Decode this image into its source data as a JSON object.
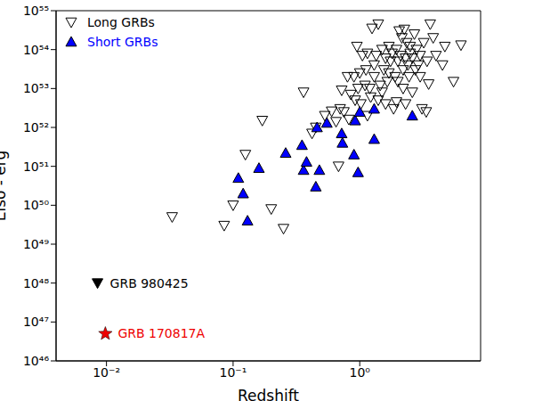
{
  "chart_data": {
    "type": "scatter",
    "log": true,
    "xlabel": "Redshift",
    "ylabel": "Eiso - erg",
    "xlim": [
      0.004,
      9
    ],
    "ylim": [
      1e+46,
      1e+55
    ],
    "xticks": [
      {
        "value": 0.01,
        "label": "10⁻²"
      },
      {
        "value": 0.1,
        "label": "10⁻¹"
      },
      {
        "value": 1,
        "label": "10⁰"
      }
    ],
    "yticks": [
      {
        "value": 1e+46,
        "label": "10⁴⁶"
      },
      {
        "value": 1e+47,
        "label": "10⁴⁷"
      },
      {
        "value": 1e+48,
        "label": "10⁴⁸"
      },
      {
        "value": 1e+49,
        "label": "10⁴⁹"
      },
      {
        "value": 1e+50,
        "label": "10⁵⁰"
      },
      {
        "value": 1e+51,
        "label": "10⁵¹"
      },
      {
        "value": 1e+52,
        "label": "10⁵²"
      },
      {
        "value": 1e+53,
        "label": "10⁵³"
      },
      {
        "value": 1e+54,
        "label": "10⁵⁴"
      },
      {
        "value": 1e+55,
        "label": "10⁵⁵"
      }
    ],
    "legend": "upper left",
    "series": [
      {
        "name": "Long GRBs",
        "color": "#000000",
        "marker": "triangle-down-open",
        "x": [
          0.033,
          0.085,
          0.1,
          0.125,
          0.17,
          0.2,
          0.25,
          0.36,
          0.42,
          0.45,
          0.53,
          0.6,
          0.65,
          0.68,
          0.7,
          0.72,
          0.75,
          0.8,
          0.82,
          0.85,
          0.9,
          0.92,
          0.95,
          0.97,
          1.0,
          1.02,
          1.05,
          1.1,
          1.12,
          1.15,
          1.2,
          1.22,
          1.25,
          1.3,
          1.3,
          1.35,
          1.4,
          1.45,
          1.5,
          1.5,
          1.55,
          1.6,
          1.6,
          1.65,
          1.7,
          1.7,
          1.75,
          1.8,
          1.85,
          1.9,
          1.95,
          2.0,
          2.0,
          2.05,
          2.1,
          2.15,
          2.2,
          2.2,
          2.25,
          2.3,
          2.35,
          2.4,
          2.45,
          2.5,
          2.5,
          2.6,
          2.7,
          2.75,
          2.8,
          2.9,
          3.0,
          3.0,
          3.1,
          3.2,
          3.35,
          3.4,
          3.5,
          3.6,
          3.8,
          4.0,
          4.5,
          4.7,
          5.5,
          6.3,
          2.3,
          1.95,
          2.6,
          1.15,
          1.4
        ],
        "values": [
          5e+49,
          3e+49,
          1e+50,
          2e+51,
          1.5e+52,
          8e+49,
          2.5e+49,
          8e+52,
          7e+51,
          1e+52,
          2e+52,
          2.6e+52,
          1.4e+52,
          1e+51,
          3e+52,
          9e+52,
          2.5e+52,
          2e+53,
          1.6e+52,
          7e+52,
          2e+53,
          5e+52,
          1.2e+54,
          1e+53,
          2.5e+53,
          4e+52,
          7e+53,
          1.2e+53,
          3e+53,
          8e+53,
          1e+53,
          6e+52,
          3.5e+54,
          4e+53,
          2e+53,
          7e+53,
          4.5e+54,
          1.2e+53,
          8e+52,
          1e+54,
          3e+53,
          6e+53,
          4e+52,
          1.5e+53,
          1.2e+54,
          2.5e+53,
          5e+53,
          8e+53,
          3e+52,
          2e+53,
          1e+54,
          5e+53,
          1.5e+53,
          3e+54,
          7e+53,
          2e+54,
          3e+53,
          1e+53,
          3.3e+54,
          6e+53,
          1.5e+54,
          4e+53,
          2e+53,
          8e+53,
          1.2e+54,
          6e+53,
          2.5e+54,
          3e+53,
          1e+54,
          4e+53,
          7e+53,
          2e+53,
          3e+52,
          1.5e+54,
          2.5e+52,
          5e+53,
          1.3e+53,
          4.5e+54,
          2e+54,
          7e+53,
          4e+53,
          1.2e+54,
          1.5e+53,
          1.3e+54,
          4e+52,
          4.5e+52,
          8e+52,
          2e+52,
          5e+52
        ]
      },
      {
        "name": "Short GRBs",
        "color": "#0000ff",
        "marker": "triangle-up",
        "x": [
          0.11,
          0.12,
          0.13,
          0.16,
          0.26,
          0.35,
          0.36,
          0.38,
          0.45,
          0.46,
          0.48,
          0.55,
          0.72,
          0.73,
          0.9,
          0.92,
          0.97,
          1.0,
          1.3,
          1.3,
          2.6
        ],
        "values": [
          5e+50,
          2e+50,
          4e+49,
          9e+50,
          2.2e+51,
          3.5e+51,
          8e+50,
          1.3e+51,
          3e+50,
          1e+52,
          8e+50,
          1.3e+52,
          7e+51,
          4e+51,
          2e+51,
          1.5e+52,
          7e+50,
          2.5e+52,
          5e+51,
          3e+52,
          2e+52
        ]
      }
    ],
    "annotations": [
      {
        "text": "GRB 980425",
        "x": 0.0085,
        "y": 1e+48,
        "marker": "triangle-down",
        "color": "#000000"
      },
      {
        "text": "GRB 170817A",
        "x": 0.0098,
        "y": 5e+46,
        "marker": "star",
        "color": "#ee0000"
      }
    ]
  }
}
